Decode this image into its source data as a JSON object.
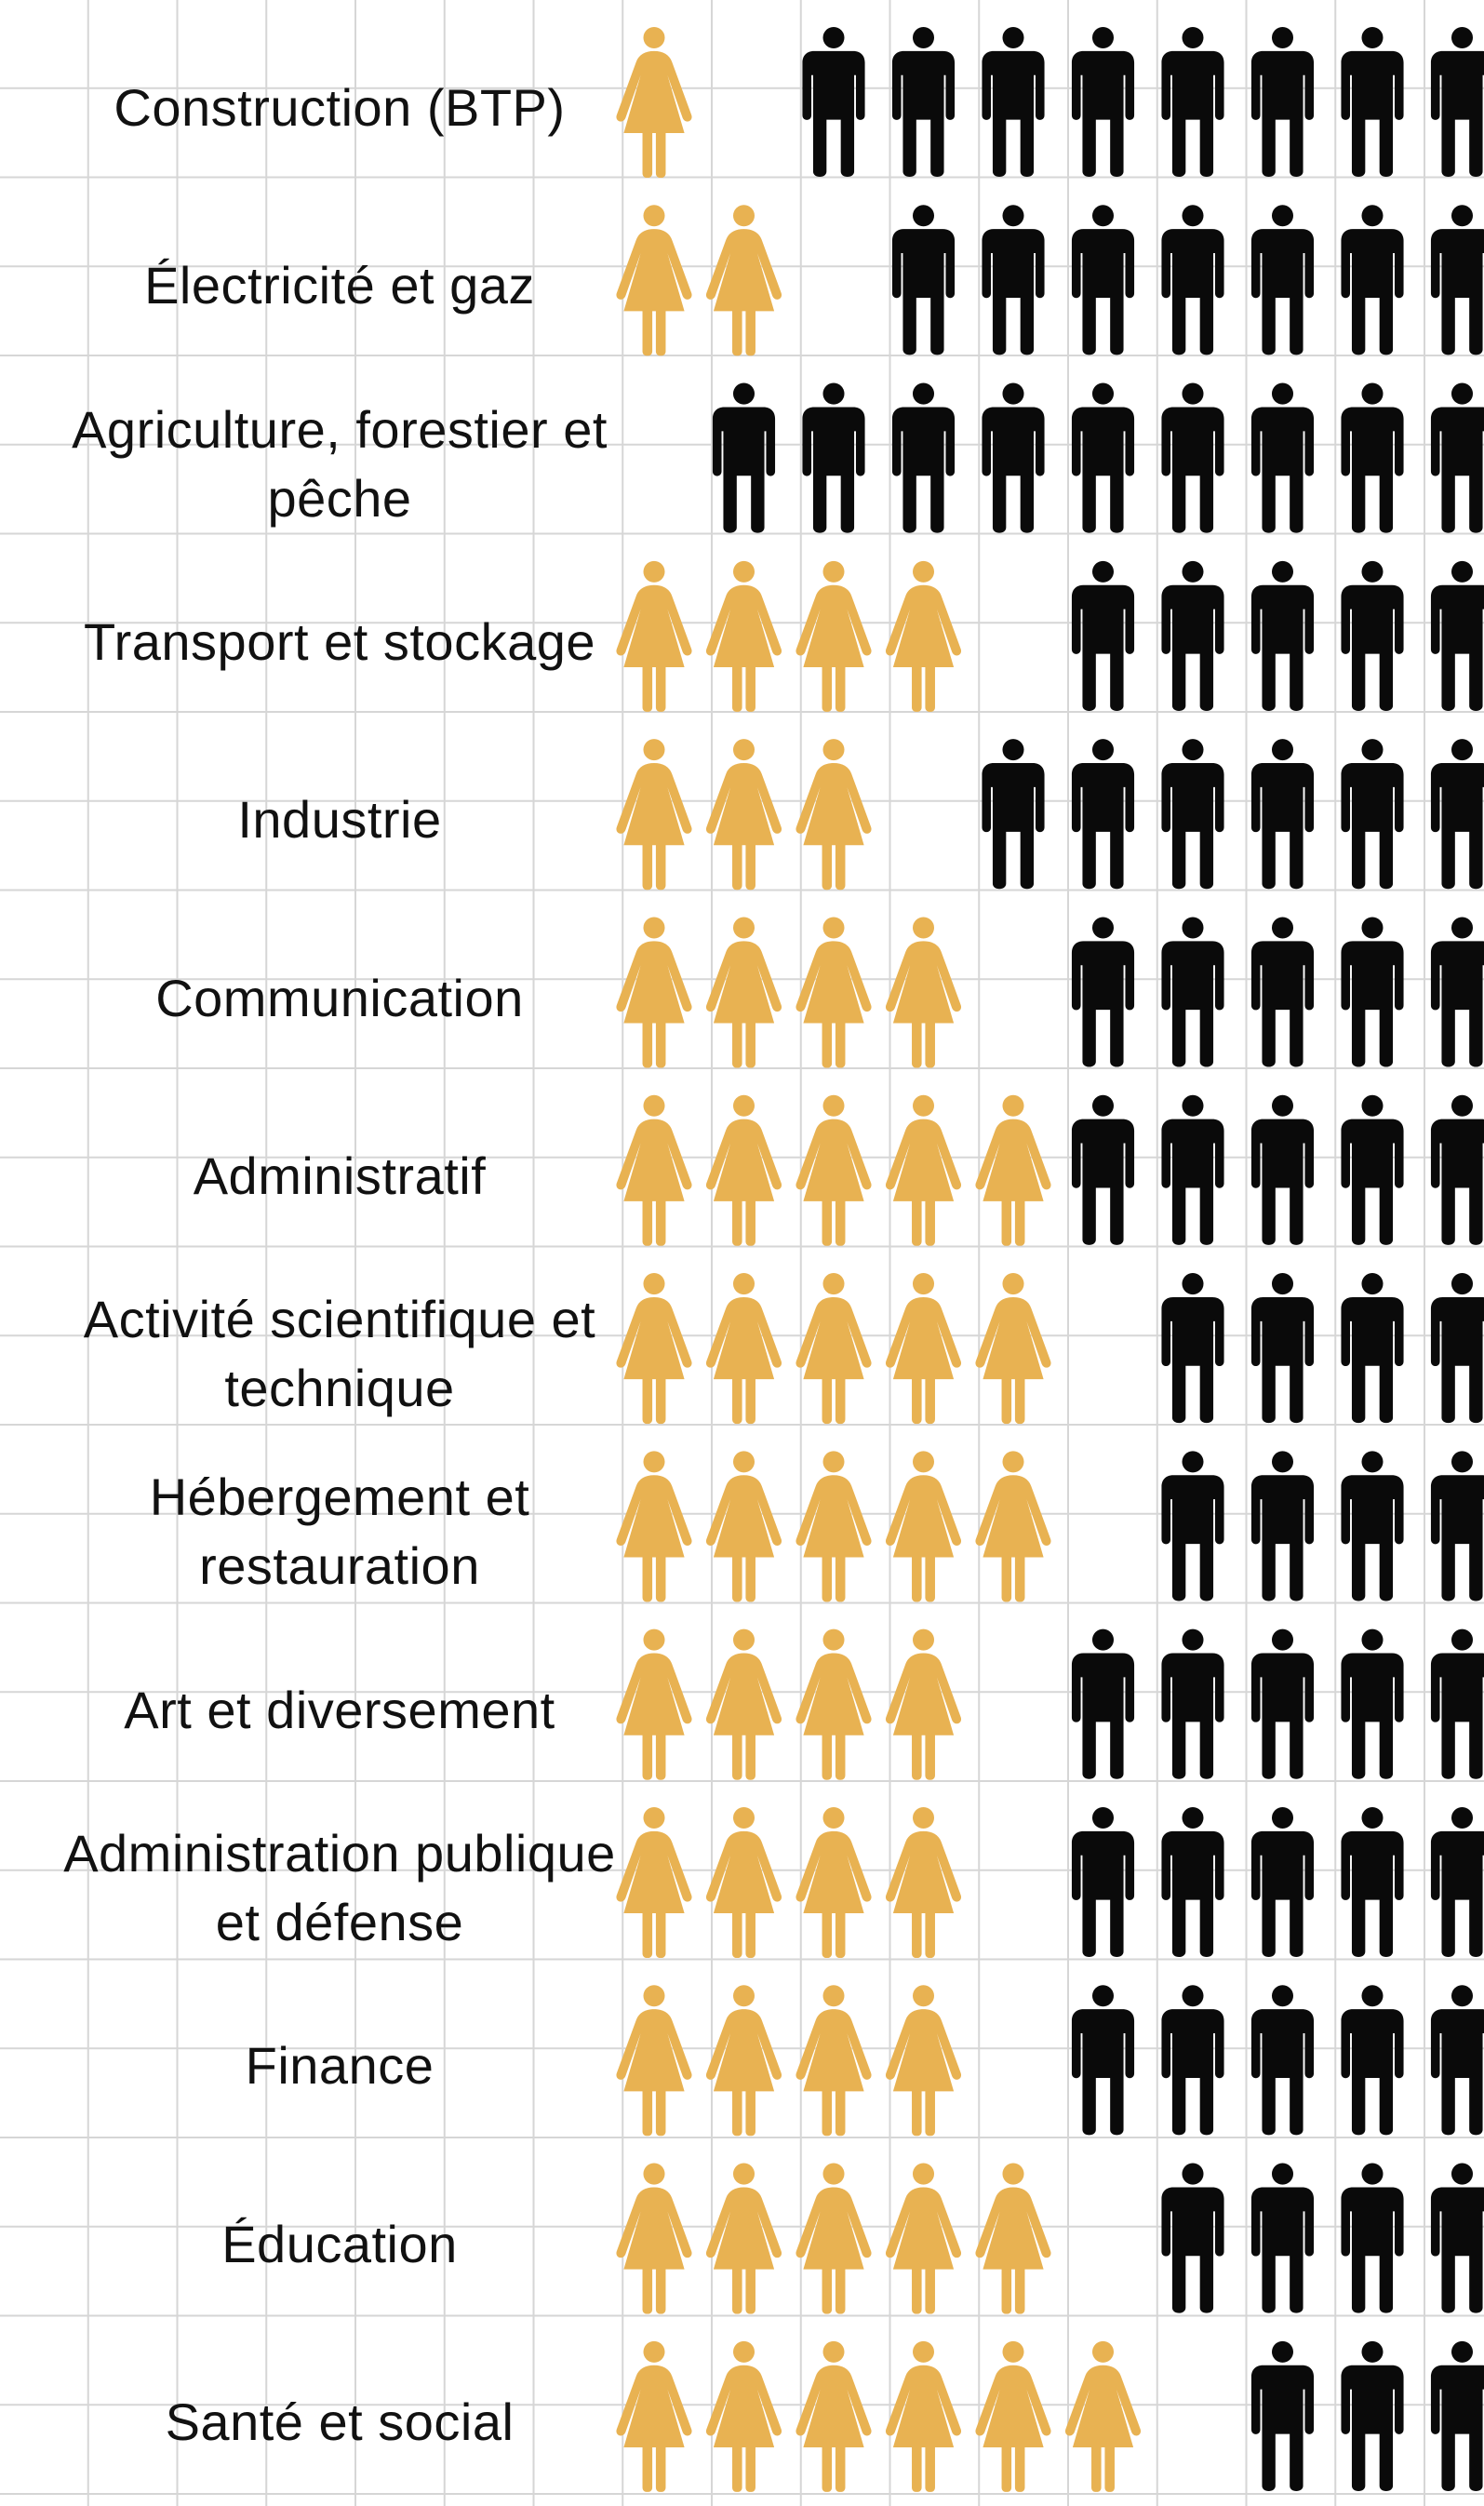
{
  "chart_data": {
    "type": "pictogram",
    "icons_per_row": 10,
    "series": [
      {
        "name": "",
        "color": "#E8B252",
        "icon": "woman-icon"
      },
      {
        "name": "",
        "color": "#0A0A0A",
        "icon": "man-icon"
      }
    ],
    "rows": [
      {
        "label": "Construction (BTP)",
        "women_icons": 1.9
      },
      {
        "label": "Électricité et gaz",
        "women_icons": 2.6
      },
      {
        "label": "Agriculture, forestier et pêche",
        "women_icons": 0.6
      },
      {
        "label": "Transport et stockage",
        "women_icons": 4.3
      },
      {
        "label": "Industrie",
        "women_icons": 3.6
      },
      {
        "label": "Communication",
        "women_icons": 4.3
      },
      {
        "label": "Administratif",
        "women_icons": 5.0
      },
      {
        "label": "Activité scientifique et technique",
        "women_icons": 5.6
      },
      {
        "label": "Hébergement et restauration",
        "women_icons": 5.6
      },
      {
        "label": "Art et diversement",
        "women_icons": 4.4
      },
      {
        "label": "Administration publique et défense",
        "women_icons": 4.4
      },
      {
        "label": "Finance",
        "women_icons": 4.3
      },
      {
        "label": "Éducation",
        "women_icons": 5.7
      },
      {
        "label": "Santé et social",
        "women_icons": 6.6
      }
    ]
  }
}
